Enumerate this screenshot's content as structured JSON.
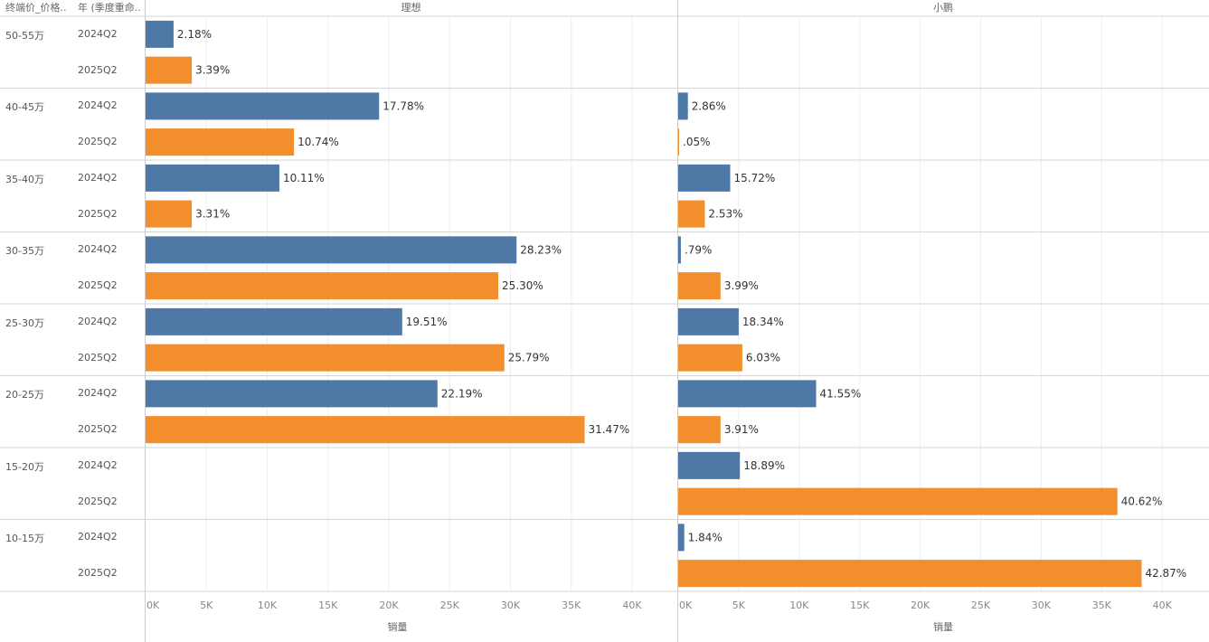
{
  "headers": {
    "price_band": "终端价_价格..",
    "year_quarter": "年 (季度重命..",
    "panel_lixiang": "理想",
    "panel_xiaopeng": "小鹏"
  },
  "axis": {
    "title": "销量",
    "ticks": [
      "0K",
      "5K",
      "10K",
      "15K",
      "20K",
      "25K",
      "30K",
      "35K",
      "40K"
    ]
  },
  "chart_data": {
    "type": "bar",
    "orientation": "horizontal",
    "xlabel": "销量",
    "xlim": [
      0,
      44000
    ],
    "grid": true,
    "price_bands": [
      "50-55万",
      "40-45万",
      "35-40万",
      "30-35万",
      "25-30万",
      "20-25万",
      "15-20万",
      "10-15万"
    ],
    "quarters": [
      "2024Q2",
      "2025Q2"
    ],
    "colors": {
      "2024Q2": "#4e79a7",
      "2025Q2": "#f28e2b"
    },
    "panels": [
      {
        "name": "理想",
        "rows": [
          {
            "band": "50-55万",
            "quarter": "2024Q2",
            "value": 2300,
            "label": "2.18%"
          },
          {
            "band": "50-55万",
            "quarter": "2025Q2",
            "value": 3800,
            "label": "3.39%"
          },
          {
            "band": "40-45万",
            "quarter": "2024Q2",
            "value": 19200,
            "label": "17.78%"
          },
          {
            "band": "40-45万",
            "quarter": "2025Q2",
            "value": 12200,
            "label": "10.74%"
          },
          {
            "band": "35-40万",
            "quarter": "2024Q2",
            "value": 11000,
            "label": "10.11%"
          },
          {
            "band": "35-40万",
            "quarter": "2025Q2",
            "value": 3800,
            "label": "3.31%"
          },
          {
            "band": "30-35万",
            "quarter": "2024Q2",
            "value": 30500,
            "label": "28.23%"
          },
          {
            "band": "30-35万",
            "quarter": "2025Q2",
            "value": 29000,
            "label": "25.30%"
          },
          {
            "band": "25-30万",
            "quarter": "2024Q2",
            "value": 21100,
            "label": "19.51%"
          },
          {
            "band": "25-30万",
            "quarter": "2025Q2",
            "value": 29500,
            "label": "25.79%"
          },
          {
            "band": "20-25万",
            "quarter": "2024Q2",
            "value": 24000,
            "label": "22.19%"
          },
          {
            "band": "20-25万",
            "quarter": "2025Q2",
            "value": 36100,
            "label": "31.47%"
          },
          {
            "band": "15-20万",
            "quarter": "2024Q2",
            "value": null,
            "label": ""
          },
          {
            "band": "15-20万",
            "quarter": "2025Q2",
            "value": null,
            "label": ""
          },
          {
            "band": "10-15万",
            "quarter": "2024Q2",
            "value": null,
            "label": ""
          },
          {
            "band": "10-15万",
            "quarter": "2025Q2",
            "value": null,
            "label": ""
          }
        ]
      },
      {
        "name": "小鹏",
        "rows": [
          {
            "band": "50-55万",
            "quarter": "2024Q2",
            "value": null,
            "label": ""
          },
          {
            "band": "50-55万",
            "quarter": "2025Q2",
            "value": null,
            "label": ""
          },
          {
            "band": "40-45万",
            "quarter": "2024Q2",
            "value": 800,
            "label": "2.86%"
          },
          {
            "band": "40-45万",
            "quarter": "2025Q2",
            "value": 40,
            "label": ".05%"
          },
          {
            "band": "35-40万",
            "quarter": "2024Q2",
            "value": 4300,
            "label": "15.72%"
          },
          {
            "band": "35-40万",
            "quarter": "2025Q2",
            "value": 2200,
            "label": "2.53%"
          },
          {
            "band": "30-35万",
            "quarter": "2024Q2",
            "value": 220,
            "label": ".79%"
          },
          {
            "band": "30-35万",
            "quarter": "2025Q2",
            "value": 3500,
            "label": "3.99%"
          },
          {
            "band": "25-30万",
            "quarter": "2024Q2",
            "value": 5000,
            "label": "18.34%"
          },
          {
            "band": "25-30万",
            "quarter": "2025Q2",
            "value": 5300,
            "label": "6.03%"
          },
          {
            "band": "20-25万",
            "quarter": "2024Q2",
            "value": 11400,
            "label": "41.55%"
          },
          {
            "band": "20-25万",
            "quarter": "2025Q2",
            "value": 3500,
            "label": "3.91%"
          },
          {
            "band": "15-20万",
            "quarter": "2024Q2",
            "value": 5100,
            "label": "18.89%"
          },
          {
            "band": "15-20万",
            "quarter": "2025Q2",
            "value": 36300,
            "label": "40.62%"
          },
          {
            "band": "10-15万",
            "quarter": "2024Q2",
            "value": 500,
            "label": "1.84%"
          },
          {
            "band": "10-15万",
            "quarter": "2025Q2",
            "value": 38300,
            "label": "42.87%"
          }
        ]
      }
    ]
  }
}
